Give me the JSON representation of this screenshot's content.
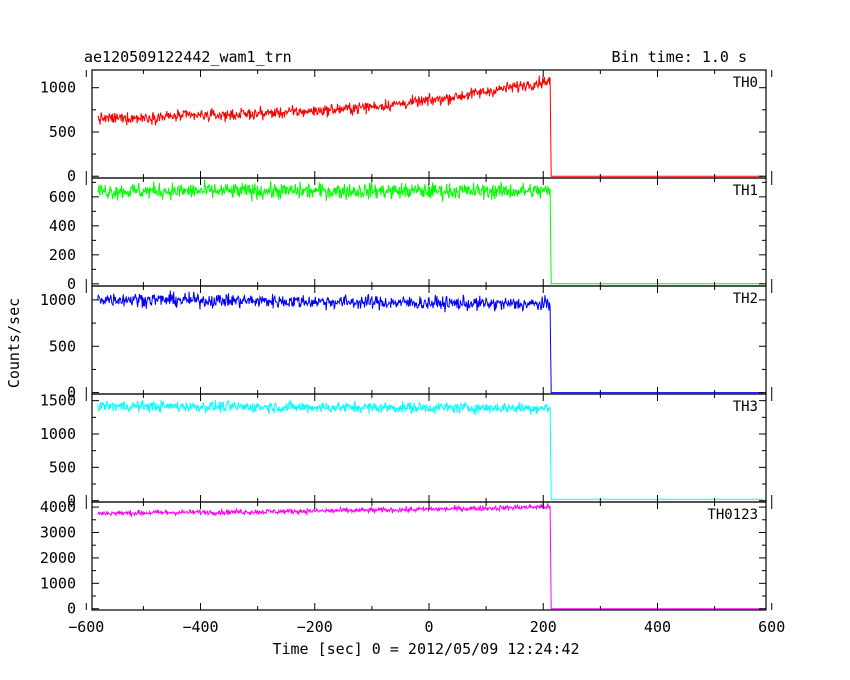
{
  "chart_data": {
    "type": "line",
    "title": "ae120509122442_wam1_trn",
    "subtitle": "Bin time: 1.0 s",
    "xlabel": "Time [sec] 0 = 2012/05/09 12:24:42",
    "ylabel": "Counts/sec",
    "xlim": [
      -590,
      590
    ],
    "xticks": [
      -600,
      -400,
      -200,
      0,
      200,
      400,
      600
    ],
    "x_start": -580,
    "x_drop": 212,
    "x_end": 585,
    "grid": false,
    "panels": [
      {
        "name": "TH0",
        "color": "#ff0000",
        "ylim": [
          -20,
          1200
        ],
        "yticks": [
          0,
          500,
          1000
        ],
        "values_before": [
          650,
          660,
          680,
          690,
          710,
          730,
          760,
          800,
          850,
          920,
          1000,
          1080
        ],
        "noise": 35,
        "value_after": 0
      },
      {
        "name": "TH1",
        "color": "#00ff00",
        "ylim": [
          -15,
          730
        ],
        "yticks": [
          0,
          200,
          400,
          600
        ],
        "values_before": [
          640,
          640
        ],
        "noise": 30,
        "value_after": 0
      },
      {
        "name": "TH2",
        "color": "#0000ff",
        "ylim": [
          -15,
          1150
        ],
        "yticks": [
          0,
          500,
          1000
        ],
        "values_before": [
          1010,
          1000,
          990,
          980,
          970,
          960,
          950
        ],
        "noise": 40,
        "value_after": 0
      },
      {
        "name": "TH3",
        "color": "#00ffff",
        "ylim": [
          -20,
          1600
        ],
        "yticks": [
          0,
          500,
          1000,
          1500
        ],
        "values_before": [
          1420,
          1410,
          1400,
          1395,
          1390
        ],
        "noise": 45,
        "value_after": 20
      },
      {
        "name": "TH0123",
        "color": "#ff00ff",
        "ylim": [
          -50,
          4200
        ],
        "yticks": [
          0,
          1000,
          2000,
          3000,
          4000
        ],
        "values_before": [
          3750,
          3780,
          3800,
          3820,
          3850,
          3880,
          3920,
          3960,
          4020
        ],
        "noise": 55,
        "value_after": 0
      }
    ]
  }
}
